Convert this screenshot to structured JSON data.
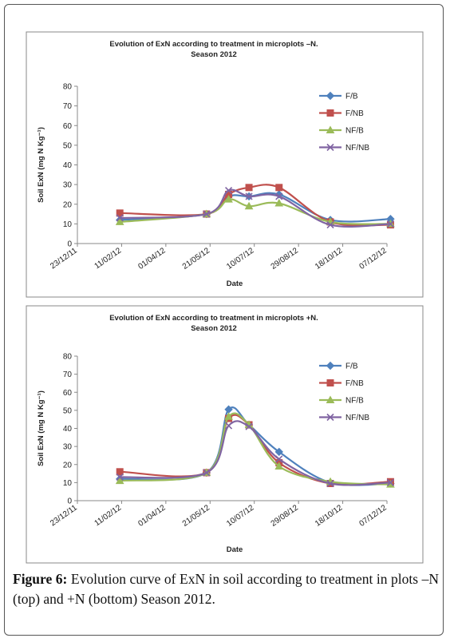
{
  "chart_data": [
    {
      "type": "line",
      "title": "Evolution of ExN according to treatment in microplots –N.",
      "subtitle": "Season 2012",
      "x_label": "Date",
      "y_label": "Soil ExN (mg N Kg⁻¹)",
      "x": [
        "2012-02-09",
        "2012-05-17",
        "2012-06-11",
        "2012-07-04",
        "2012-08-07",
        "2012-10-04",
        "2012-12-11"
      ],
      "xlim": [
        "2011-12-23",
        "2012-12-07"
      ],
      "xticks": [
        {
          "value": "2011-12-23",
          "label": "23/12/11"
        },
        {
          "value": "2012-02-11",
          "label": "11/02/12"
        },
        {
          "value": "2012-04-01",
          "label": "01/04/12"
        },
        {
          "value": "2012-05-21",
          "label": "21/05/12"
        },
        {
          "value": "2012-07-10",
          "label": "10/07/12"
        },
        {
          "value": "2012-08-29",
          "label": "29/08/12"
        },
        {
          "value": "2012-10-18",
          "label": "18/10/12"
        },
        {
          "value": "2012-12-07",
          "label": "07/12/12"
        }
      ],
      "ylim": [
        0,
        80
      ],
      "yticks": [
        0,
        10,
        20,
        30,
        40,
        50,
        60,
        70,
        80
      ],
      "legend": "right",
      "series": [
        {
          "name": "F/B",
          "color": "#4f81bd",
          "marker": "diamond",
          "values": [
            12,
            15,
            24,
            24,
            25,
            12,
            12.5
          ]
        },
        {
          "name": "F/NB",
          "color": "#c0504d",
          "marker": "square",
          "values": [
            15.5,
            15,
            25,
            28.5,
            28.5,
            11,
            9.5
          ]
        },
        {
          "name": "NF/B",
          "color": "#9bbb59",
          "marker": "triangle",
          "values": [
            11,
            15,
            22.5,
            19,
            20.5,
            11,
            10
          ]
        },
        {
          "name": "NF/NB",
          "color": "#8064a2",
          "marker": "x",
          "values": [
            13,
            15,
            27,
            24,
            24,
            9.5,
            10
          ]
        }
      ]
    },
    {
      "type": "line",
      "title": "Evolution of ExN according to treatment in microplots +N.",
      "subtitle": "Season 2012",
      "x_label": "Date",
      "y_label": "Soil ExN (mg N Kg⁻¹)",
      "x": [
        "2012-02-09",
        "2012-05-17",
        "2012-06-11",
        "2012-07-04",
        "2012-08-07",
        "2012-10-04",
        "2012-12-11"
      ],
      "xlim": [
        "2011-12-23",
        "2012-12-07"
      ],
      "xticks": [
        {
          "value": "2011-12-23",
          "label": "23/12/11"
        },
        {
          "value": "2012-02-11",
          "label": "11/02/12"
        },
        {
          "value": "2012-04-01",
          "label": "01/04/12"
        },
        {
          "value": "2012-05-21",
          "label": "21/05/12"
        },
        {
          "value": "2012-07-10",
          "label": "10/07/12"
        },
        {
          "value": "2012-08-29",
          "label": "29/08/12"
        },
        {
          "value": "2012-10-18",
          "label": "18/10/12"
        },
        {
          "value": "2012-12-07",
          "label": "07/12/12"
        }
      ],
      "ylim": [
        0,
        80
      ],
      "yticks": [
        0,
        10,
        20,
        30,
        40,
        50,
        60,
        70,
        80
      ],
      "legend": "right",
      "series": [
        {
          "name": "F/B",
          "color": "#4f81bd",
          "marker": "diamond",
          "values": [
            12,
            15.5,
            50.5,
            42,
            27,
            10,
            9.5
          ]
        },
        {
          "name": "F/NB",
          "color": "#c0504d",
          "marker": "square",
          "values": [
            16,
            15.5,
            45.5,
            42,
            21,
            9.5,
            10.5
          ]
        },
        {
          "name": "NF/B",
          "color": "#9bbb59",
          "marker": "triangle",
          "values": [
            11,
            15.5,
            46.5,
            42,
            19,
            10.5,
            9
          ]
        },
        {
          "name": "NF/NB",
          "color": "#8064a2",
          "marker": "x",
          "values": [
            13,
            15.5,
            41.5,
            41,
            23,
            9.5,
            10
          ]
        }
      ]
    }
  ],
  "caption": {
    "label": "Figure 6:",
    "text": "Evolution curve of ExN in soil according to treatment in plots –N (top) and +N (bottom) Season 2012."
  }
}
